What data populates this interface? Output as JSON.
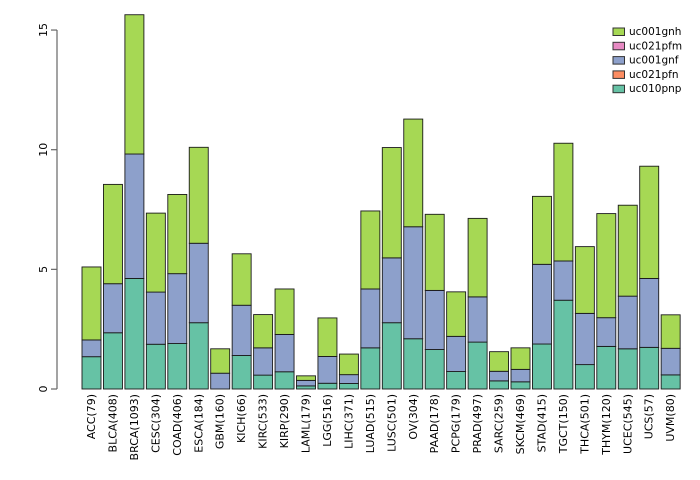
{
  "chart_data": {
    "type": "bar",
    "stacked": true,
    "title": "",
    "xlabel": "",
    "ylabel": "",
    "grid": false,
    "background": "#ffffff",
    "bar_border_color": "#1a1a1a",
    "axis_color": "#666666",
    "ylim": [
      0,
      15.7
    ],
    "yticks": [
      0,
      5,
      10,
      15
    ],
    "legend_position": "top-right",
    "legend": [
      "uc001gnh",
      "uc021pfm",
      "uc001gnf",
      "uc021pfn",
      "uc010pnp"
    ],
    "categories": [
      "ACC(79)",
      "BLCA(408)",
      "BRCA(1093)",
      "CESC(304)",
      "COAD(406)",
      "ESCA(184)",
      "GBM(160)",
      "KICH(66)",
      "KIRC(533)",
      "KIRP(290)",
      "LAML(179)",
      "LGG(516)",
      "LIHC(371)",
      "LUAD(515)",
      "LUSC(501)",
      "OV(304)",
      "PAAD(178)",
      "PCPG(179)",
      "PRAD(497)",
      "SARC(259)",
      "SKCM(469)",
      "STAD(415)",
      "TGCT(150)",
      "THCA(501)",
      "THYM(120)",
      "UCEC(545)",
      "UCS(57)",
      "UVM(80)"
    ],
    "series": [
      {
        "name": "uc010pnp",
        "color": "#66C2A5",
        "values": [
          1.35,
          2.35,
          4.62,
          1.87,
          1.9,
          2.77,
          0.0,
          1.4,
          0.58,
          0.72,
          0.13,
          0.24,
          0.23,
          1.72,
          2.77,
          2.1,
          1.65,
          0.73,
          1.96,
          0.34,
          0.3,
          1.88,
          3.71,
          1.02,
          1.78,
          1.68,
          1.74,
          0.59
        ]
      },
      {
        "name": "uc021pfn",
        "color": "#FC8D62",
        "values": [
          0,
          0,
          0,
          0,
          0,
          0,
          0,
          0,
          0,
          0,
          0,
          0,
          0,
          0,
          0,
          0,
          0,
          0,
          0,
          0,
          0,
          0,
          0,
          0,
          0,
          0,
          0,
          0
        ]
      },
      {
        "name": "uc001gnf",
        "color": "#8DA0CB",
        "values": [
          0.7,
          2.05,
          5.2,
          2.18,
          2.92,
          3.32,
          0.66,
          2.1,
          1.14,
          1.56,
          0.23,
          1.12,
          0.37,
          2.46,
          2.71,
          4.68,
          2.47,
          1.47,
          1.89,
          0.4,
          0.52,
          3.33,
          1.64,
          2.14,
          1.2,
          2.2,
          2.88,
          1.11
        ]
      },
      {
        "name": "uc021pfm",
        "color": "#E78AC3",
        "values": [
          0,
          0,
          0,
          0,
          0,
          0,
          0,
          0,
          0,
          0,
          0,
          0,
          0,
          0,
          0,
          0,
          0,
          0,
          0,
          0,
          0,
          0,
          0,
          0,
          0,
          0,
          0,
          0
        ]
      },
      {
        "name": "uc001gnh",
        "color": "#A6D854",
        "values": [
          3.05,
          4.15,
          5.82,
          3.3,
          3.31,
          4.01,
          1.02,
          2.15,
          1.39,
          1.9,
          0.19,
          1.61,
          0.86,
          3.26,
          4.61,
          4.5,
          3.18,
          1.86,
          3.28,
          0.82,
          0.9,
          2.84,
          4.92,
          2.79,
          4.35,
          3.8,
          4.69,
          1.4
        ]
      }
    ]
  }
}
